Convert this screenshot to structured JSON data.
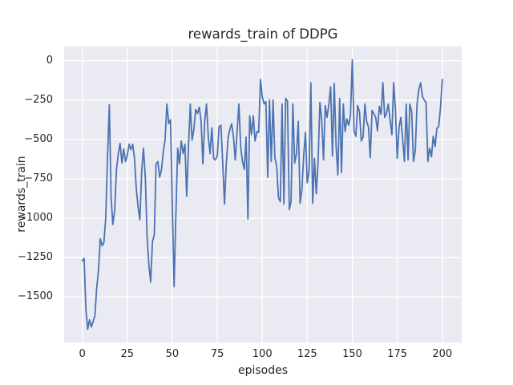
{
  "chart_data": {
    "type": "line",
    "title": "rewards_train of DDPG",
    "xlabel": "episodes",
    "ylabel": "rewards_train",
    "x_ticks": [
      0,
      25,
      50,
      75,
      100,
      125,
      150,
      175,
      200
    ],
    "y_ticks": [
      0,
      -250,
      -500,
      -750,
      -1000,
      -1250,
      -1500
    ],
    "xlim": [
      -10.1,
      210.8
    ],
    "ylim": [
      -1790,
      92
    ],
    "grid": true,
    "legend": "none",
    "colors": {
      "line": "#4C72B0",
      "axes_background": "#EAEAF2",
      "gridline": "#FFFFFF",
      "figure_background": "#FFFFFF",
      "text": "#262626"
    },
    "x_start": 0,
    "x_step": 1,
    "values": [
      -1270,
      -1255,
      -1580,
      -1705,
      -1645,
      -1690,
      -1655,
      -1620,
      -1445,
      -1330,
      -1130,
      -1175,
      -1155,
      -1000,
      -620,
      -280,
      -870,
      -1040,
      -950,
      -690,
      -590,
      -525,
      -650,
      -560,
      -640,
      -600,
      -530,
      -565,
      -530,
      -620,
      -810,
      -930,
      -1010,
      -700,
      -555,
      -740,
      -1115,
      -1300,
      -1405,
      -1150,
      -1105,
      -655,
      -640,
      -740,
      -690,
      -580,
      -500,
      -275,
      -400,
      -375,
      -900,
      -1435,
      -980,
      -555,
      -655,
      -510,
      -590,
      -530,
      -860,
      -540,
      -275,
      -505,
      -435,
      -310,
      -335,
      -295,
      -385,
      -655,
      -385,
      -275,
      -485,
      -590,
      -425,
      -620,
      -630,
      -605,
      -420,
      -410,
      -640,
      -910,
      -655,
      -490,
      -435,
      -400,
      -485,
      -630,
      -450,
      -275,
      -550,
      -640,
      -690,
      -485,
      -1005,
      -350,
      -470,
      -350,
      -510,
      -450,
      -455,
      -120,
      -230,
      -275,
      -260,
      -740,
      -250,
      -640,
      -250,
      -615,
      -670,
      -870,
      -895,
      -275,
      -910,
      -240,
      -255,
      -945,
      -895,
      -275,
      -650,
      -590,
      -385,
      -905,
      -820,
      -600,
      -455,
      -775,
      -700,
      -140,
      -905,
      -620,
      -845,
      -640,
      -265,
      -370,
      -630,
      -285,
      -360,
      -275,
      -165,
      -605,
      -145,
      -540,
      -725,
      -240,
      -710,
      -275,
      -450,
      -370,
      -410,
      -350,
      5,
      -445,
      -480,
      -285,
      -325,
      -510,
      -485,
      -275,
      -385,
      -420,
      -615,
      -315,
      -335,
      -360,
      -445,
      -290,
      -340,
      -140,
      -360,
      -335,
      -275,
      -375,
      -470,
      -140,
      -315,
      -620,
      -420,
      -360,
      -505,
      -640,
      -275,
      -630,
      -275,
      -325,
      -640,
      -570,
      -275,
      -180,
      -140,
      -230,
      -250,
      -265,
      -640,
      -555,
      -610,
      -480,
      -545,
      -430,
      -418,
      -300,
      -120
    ]
  }
}
